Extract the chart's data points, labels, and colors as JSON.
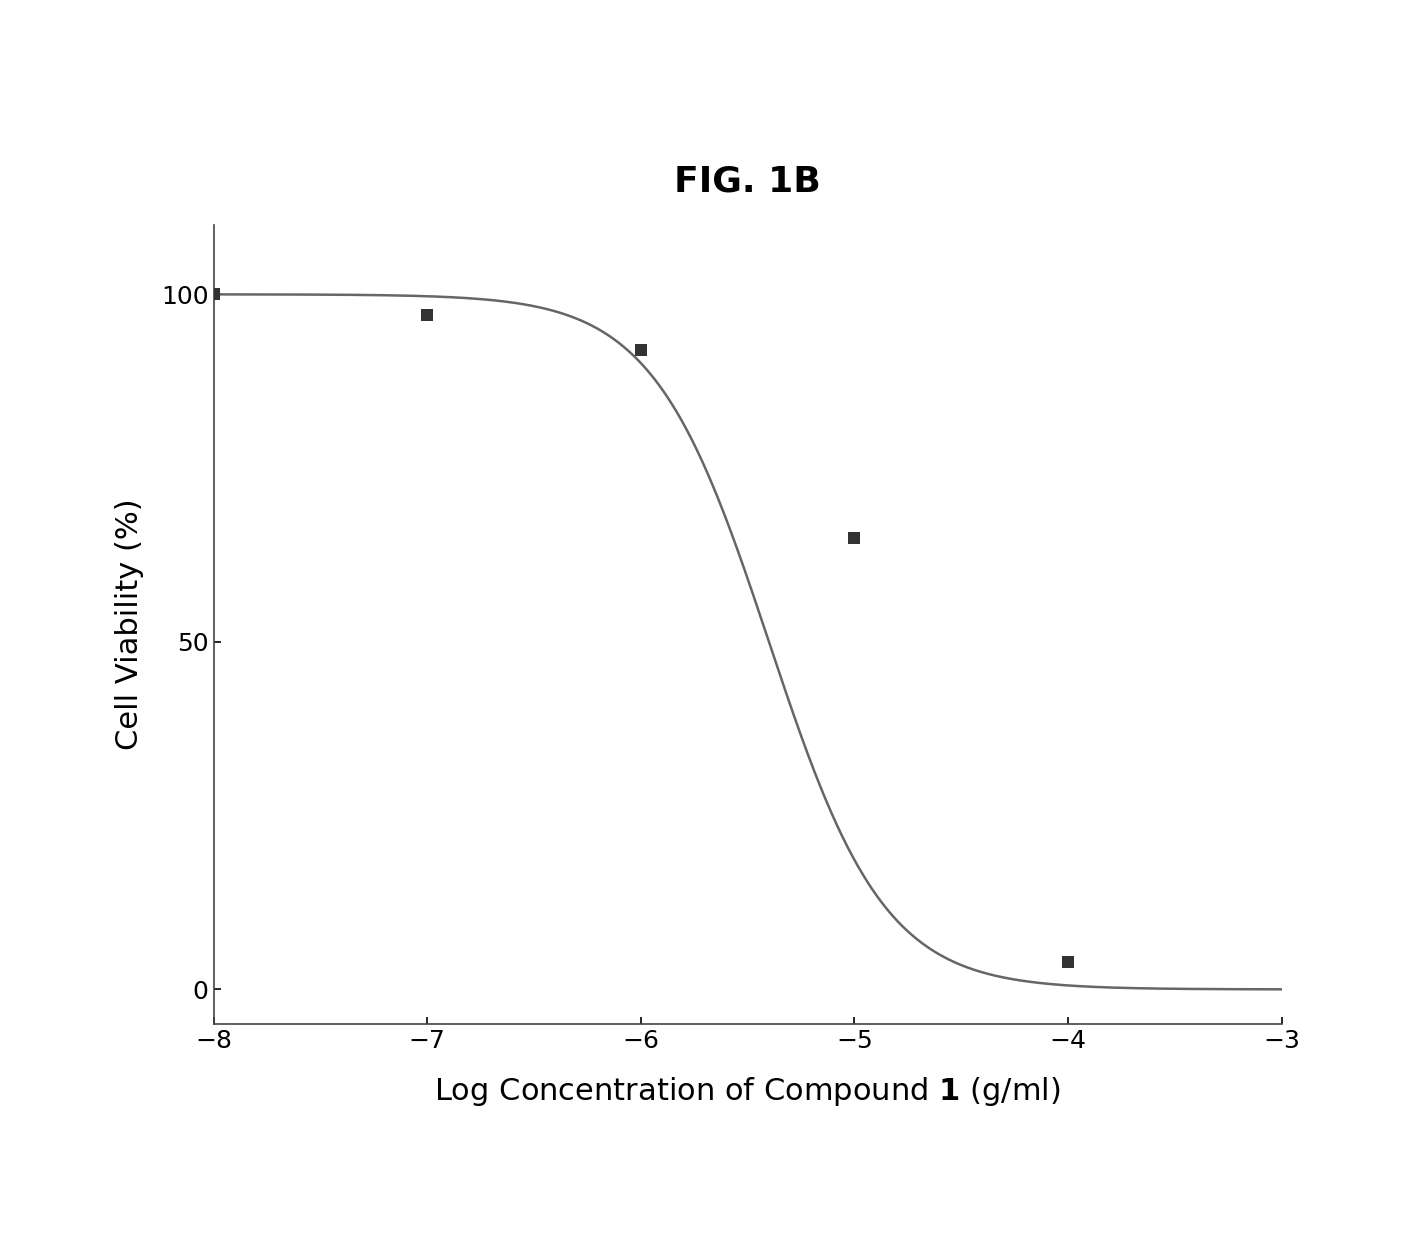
{
  "title": "FIG. 1B",
  "xlabel_prefix": "Log Concentration of Compound ",
  "xlabel_bold": "1",
  "xlabel_suffix": " (g/ml)",
  "ylabel": "Cell Viability (%)",
  "xlim": [
    -8,
    -3
  ],
  "ylim": [
    -5,
    110
  ],
  "xticks": [
    -8,
    -7,
    -6,
    -5,
    -4,
    -3
  ],
  "yticks": [
    0,
    50,
    100
  ],
  "data_points_x": [
    -8,
    -7,
    -6,
    -5,
    -4
  ],
  "data_points_y": [
    100,
    97,
    92,
    65,
    4
  ],
  "curve_color": "#666666",
  "point_color": "#333333",
  "background_color": "#ffffff",
  "title_fontsize": 26,
  "axis_label_fontsize": 22,
  "tick_fontsize": 18,
  "line_width": 1.8,
  "marker_size": 9,
  "ic50_log": -5.4,
  "hill_slope": 1.6
}
